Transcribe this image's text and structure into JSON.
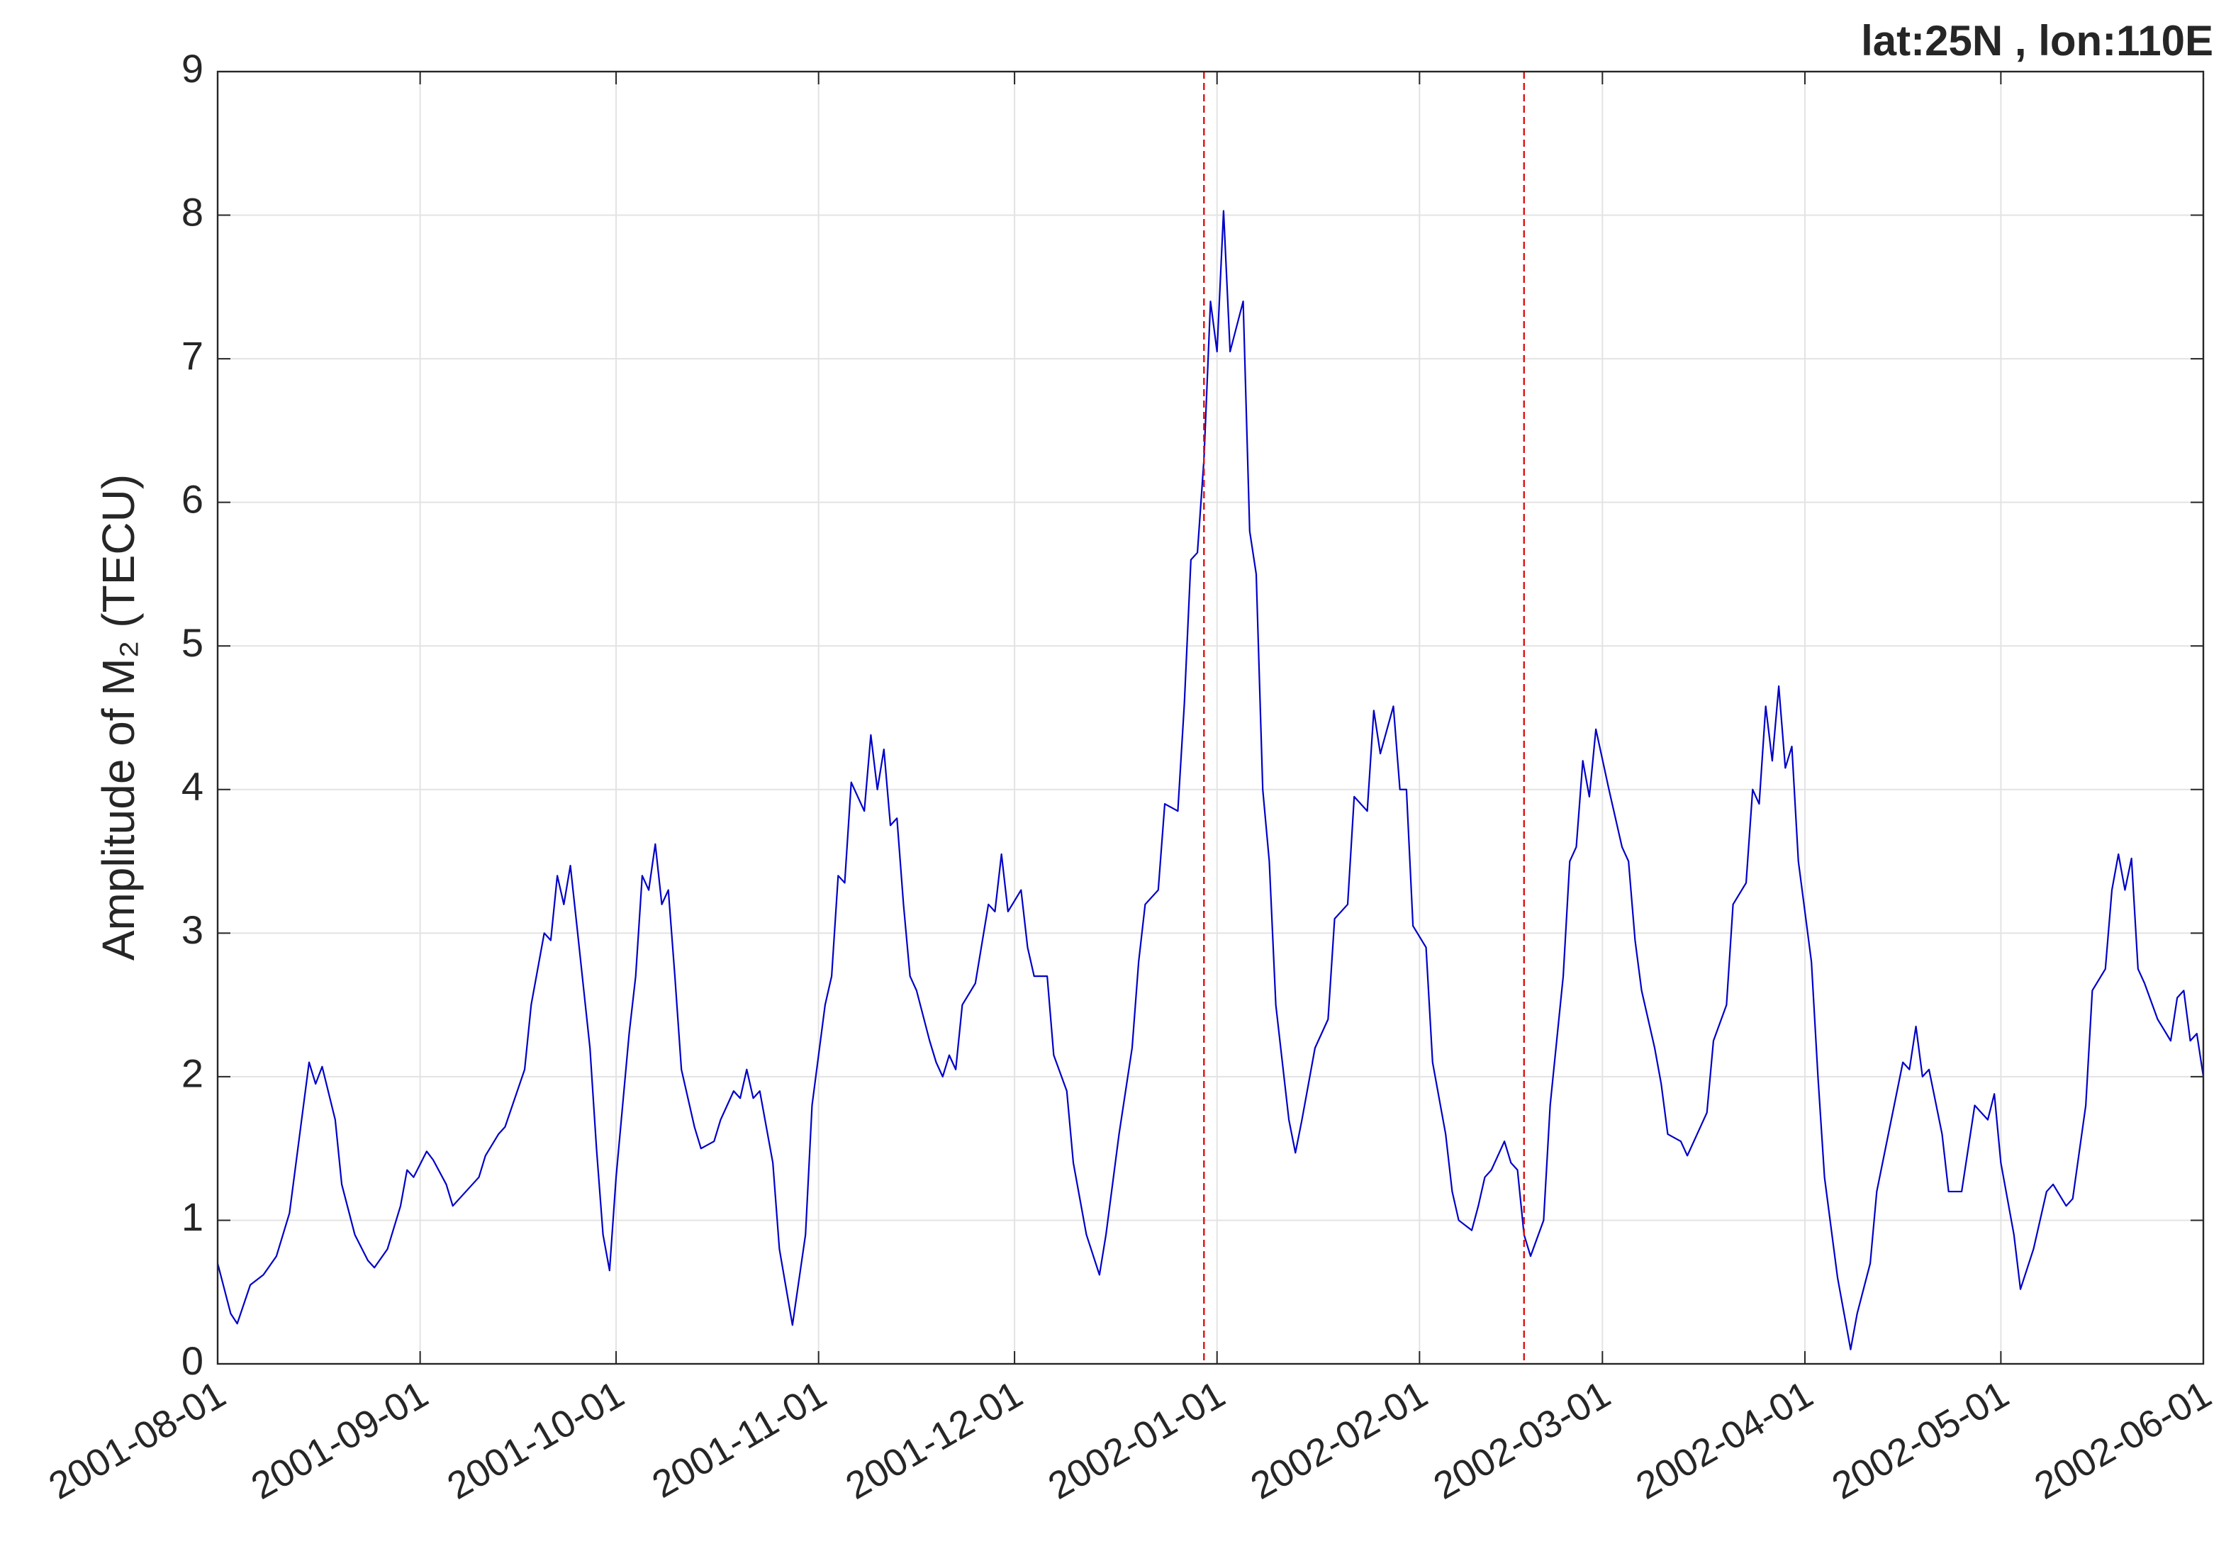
{
  "chart_data": {
    "type": "line",
    "title": "lat:25N , lon:110E",
    "ylabel": "Amplitude of M₂ (TECU)",
    "color": "#0000c8",
    "grid": true,
    "vline_color": "#e01010",
    "vlines": [
      "2001-12-30",
      "2002-02-17"
    ],
    "xlim": [
      "2001-08-01",
      "2002-06-01"
    ],
    "xticks": [
      "2001-08-01",
      "2001-09-01",
      "2001-10-01",
      "2001-11-01",
      "2001-12-01",
      "2002-01-01",
      "2002-02-01",
      "2002-03-01",
      "2002-04-01",
      "2002-05-01",
      "2002-06-01"
    ],
    "ylim": [
      0,
      9
    ],
    "yticks": [
      0,
      1,
      2,
      3,
      4,
      5,
      6,
      7,
      8,
      9
    ],
    "x": [
      "2001-08-01",
      "2001-08-03",
      "2001-08-04",
      "2001-08-06",
      "2001-08-08",
      "2001-08-10",
      "2001-08-12",
      "2001-08-14",
      "2001-08-15",
      "2001-08-16",
      "2001-08-17",
      "2001-08-19",
      "2001-08-20",
      "2001-08-22",
      "2001-08-24",
      "2001-08-25",
      "2001-08-27",
      "2001-08-29",
      "2001-08-30",
      "2001-08-31",
      "2001-09-02",
      "2001-09-03",
      "2001-09-05",
      "2001-09-06",
      "2001-09-08",
      "2001-09-10",
      "2001-09-11",
      "2001-09-13",
      "2001-09-14",
      "2001-09-17",
      "2001-09-18",
      "2001-09-20",
      "2001-09-21",
      "2001-09-22",
      "2001-09-23",
      "2001-09-24",
      "2001-09-25",
      "2001-09-27",
      "2001-09-28",
      "2001-09-29",
      "2001-09-30",
      "2001-10-01",
      "2001-10-03",
      "2001-10-04",
      "2001-10-05",
      "2001-10-06",
      "2001-10-07",
      "2001-10-08",
      "2001-10-09",
      "2001-10-10",
      "2001-10-11",
      "2001-10-13",
      "2001-10-14",
      "2001-10-16",
      "2001-10-17",
      "2001-10-19",
      "2001-10-20",
      "2001-10-21",
      "2001-10-22",
      "2001-10-23",
      "2001-10-25",
      "2001-10-26",
      "2001-10-28",
      "2001-10-30",
      "2001-10-31",
      "2001-11-02",
      "2001-11-03",
      "2001-11-04",
      "2001-11-05",
      "2001-11-06",
      "2001-11-08",
      "2001-11-09",
      "2001-11-10",
      "2001-11-11",
      "2001-11-12",
      "2001-11-13",
      "2001-11-14",
      "2001-11-15",
      "2001-11-16",
      "2001-11-18",
      "2001-11-19",
      "2001-11-20",
      "2001-11-21",
      "2001-11-22",
      "2001-11-23",
      "2001-11-25",
      "2001-11-27",
      "2001-11-28",
      "2001-11-29",
      "2001-11-30",
      "2001-12-02",
      "2001-12-03",
      "2001-12-04",
      "2001-12-06",
      "2001-12-07",
      "2001-12-09",
      "2001-12-10",
      "2001-12-12",
      "2001-12-14",
      "2001-12-15",
      "2001-12-17",
      "2001-12-19",
      "2001-12-20",
      "2001-12-21",
      "2001-12-23",
      "2001-12-24",
      "2001-12-26",
      "2001-12-27",
      "2001-12-28",
      "2001-12-29",
      "2001-12-30",
      "2001-12-31",
      "2002-01-01",
      "2002-01-02",
      "2002-01-03",
      "2002-01-05",
      "2002-01-06",
      "2002-01-07",
      "2002-01-08",
      "2002-01-09",
      "2002-01-10",
      "2002-01-12",
      "2002-01-13",
      "2002-01-14",
      "2002-01-16",
      "2002-01-18",
      "2002-01-19",
      "2002-01-21",
      "2002-01-22",
      "2002-01-24",
      "2002-01-25",
      "2002-01-26",
      "2002-01-28",
      "2002-01-29",
      "2002-01-30",
      "2002-01-31",
      "2002-02-02",
      "2002-02-03",
      "2002-02-05",
      "2002-02-06",
      "2002-02-07",
      "2002-02-09",
      "2002-02-10",
      "2002-02-11",
      "2002-02-12",
      "2002-02-14",
      "2002-02-15",
      "2002-02-16",
      "2002-02-17",
      "2002-02-18",
      "2002-02-20",
      "2002-02-21",
      "2002-02-23",
      "2002-02-24",
      "2002-02-25",
      "2002-02-26",
      "2002-02-27",
      "2002-02-28",
      "2002-03-02",
      "2002-03-04",
      "2002-03-05",
      "2002-03-06",
      "2002-03-07",
      "2002-03-09",
      "2002-03-10",
      "2002-03-11",
      "2002-03-13",
      "2002-03-14",
      "2002-03-16",
      "2002-03-17",
      "2002-03-18",
      "2002-03-20",
      "2002-03-21",
      "2002-03-23",
      "2002-03-24",
      "2002-03-25",
      "2002-03-26",
      "2002-03-27",
      "2002-03-28",
      "2002-03-29",
      "2002-03-30",
      "2002-03-31",
      "2002-04-02",
      "2002-04-03",
      "2002-04-04",
      "2002-04-06",
      "2002-04-08",
      "2002-04-09",
      "2002-04-11",
      "2002-04-12",
      "2002-04-14",
      "2002-04-16",
      "2002-04-17",
      "2002-04-18",
      "2002-04-19",
      "2002-04-20",
      "2002-04-22",
      "2002-04-23",
      "2002-04-25",
      "2002-04-26",
      "2002-04-27",
      "2002-04-29",
      "2002-04-30",
      "2002-05-01",
      "2002-05-03",
      "2002-05-04",
      "2002-05-06",
      "2002-05-08",
      "2002-05-09",
      "2002-05-11",
      "2002-05-12",
      "2002-05-14",
      "2002-05-15",
      "2002-05-17",
      "2002-05-18",
      "2002-05-19",
      "2002-05-20",
      "2002-05-21",
      "2002-05-22",
      "2002-05-23",
      "2002-05-25",
      "2002-05-27",
      "2002-05-28",
      "2002-05-29",
      "2002-05-30",
      "2002-05-31",
      "2002-06-01"
    ],
    "values": [
      0.7,
      0.35,
      0.28,
      0.55,
      0.62,
      0.75,
      1.05,
      1.75,
      2.1,
      1.95,
      2.07,
      1.7,
      1.25,
      0.9,
      0.72,
      0.67,
      0.8,
      1.1,
      1.35,
      1.3,
      1.48,
      1.42,
      1.25,
      1.1,
      1.2,
      1.3,
      1.45,
      1.6,
      1.65,
      2.05,
      2.5,
      3.0,
      2.95,
      3.4,
      3.2,
      3.47,
      3.05,
      2.2,
      1.5,
      0.9,
      0.65,
      1.3,
      2.3,
      2.7,
      3.4,
      3.3,
      3.62,
      3.2,
      3.3,
      2.7,
      2.05,
      1.65,
      1.5,
      1.55,
      1.7,
      1.9,
      1.85,
      2.05,
      1.85,
      1.9,
      1.4,
      0.8,
      0.27,
      0.9,
      1.8,
      2.5,
      2.7,
      3.4,
      3.35,
      4.05,
      3.85,
      4.38,
      4.0,
      4.28,
      3.75,
      3.8,
      3.2,
      2.7,
      2.6,
      2.25,
      2.1,
      2.0,
      2.15,
      2.05,
      2.5,
      2.65,
      3.2,
      3.15,
      3.55,
      3.15,
      3.3,
      2.9,
      2.7,
      2.7,
      2.15,
      1.9,
      1.4,
      0.9,
      0.62,
      0.9,
      1.6,
      2.2,
      2.8,
      3.2,
      3.3,
      3.9,
      3.85,
      4.6,
      5.6,
      5.65,
      6.3,
      7.4,
      7.05,
      8.03,
      7.05,
      7.4,
      5.8,
      5.5,
      4.0,
      3.5,
      2.5,
      1.7,
      1.47,
      1.7,
      2.2,
      2.4,
      3.1,
      3.2,
      3.95,
      3.85,
      4.55,
      4.25,
      4.58,
      4.0,
      4.0,
      3.05,
      2.9,
      2.1,
      1.6,
      1.2,
      1.0,
      0.93,
      1.1,
      1.3,
      1.35,
      1.55,
      1.4,
      1.35,
      0.9,
      0.75,
      1.0,
      1.8,
      2.7,
      3.5,
      3.6,
      4.2,
      3.95,
      4.42,
      4.0,
      3.6,
      3.5,
      2.95,
      2.6,
      2.2,
      1.95,
      1.6,
      1.55,
      1.45,
      1.65,
      1.75,
      2.25,
      2.5,
      3.2,
      3.35,
      4.0,
      3.9,
      4.58,
      4.2,
      4.72,
      4.15,
      4.3,
      3.5,
      2.8,
      2.0,
      1.3,
      0.6,
      0.1,
      0.35,
      0.7,
      1.2,
      1.65,
      2.1,
      2.05,
      2.35,
      2.0,
      2.05,
      1.6,
      1.2,
      1.2,
      1.5,
      1.8,
      1.7,
      1.88,
      1.4,
      0.9,
      0.52,
      0.8,
      1.2,
      1.25,
      1.1,
      1.15,
      1.8,
      2.6,
      2.75,
      3.3,
      3.55,
      3.3,
      3.52,
      2.75,
      2.65,
      2.4,
      2.25,
      2.55,
      2.6,
      2.25,
      2.3,
      2.0
    ]
  }
}
